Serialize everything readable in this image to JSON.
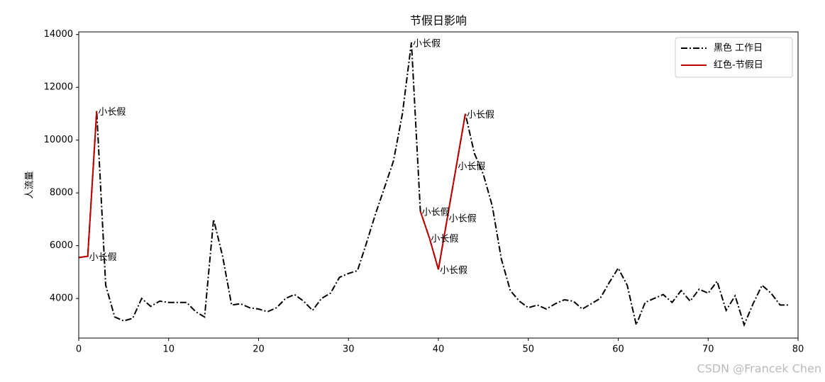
{
  "chart_data": {
    "type": "line",
    "title": "节假日影响",
    "ylabel": "人流量",
    "x": [
      0,
      1,
      2,
      3,
      4,
      5,
      6,
      7,
      8,
      9,
      10,
      11,
      12,
      13,
      14,
      15,
      16,
      17,
      18,
      19,
      20,
      21,
      22,
      23,
      24,
      25,
      26,
      27,
      28,
      29,
      30,
      31,
      32,
      33,
      34,
      35,
      36,
      37,
      38,
      39,
      40,
      41,
      42,
      43,
      44,
      45,
      46,
      47,
      48,
      49,
      50,
      51,
      52,
      53,
      54,
      55,
      56,
      57,
      58,
      59,
      60,
      61,
      62,
      63,
      64,
      65,
      66,
      67,
      68,
      69,
      70,
      71,
      72,
      73,
      74,
      75,
      76,
      77,
      78,
      79
    ],
    "series": [
      {
        "name": "黑色 工作日",
        "color": "#000000",
        "style": "dashdot",
        "values": [
          5550,
          5600,
          11100,
          4500,
          3300,
          3150,
          3250,
          4000,
          3700,
          3900,
          3850,
          3850,
          3850,
          3500,
          3300,
          7000,
          5600,
          3750,
          3800,
          3650,
          3600,
          3500,
          3650,
          4000,
          4150,
          3900,
          3550,
          4000,
          4200,
          4800,
          4950,
          5050,
          6100,
          7200,
          8200,
          9200,
          11000,
          13700,
          7300,
          6300,
          5100,
          7067,
          9033,
          11000,
          9500,
          8700,
          7500,
          5500,
          4300,
          3900,
          3650,
          3750,
          3600,
          3800,
          3950,
          3900,
          3600,
          3800,
          4000,
          4600,
          5150,
          4500,
          3000,
          3850,
          4000,
          4150,
          3850,
          4300,
          3900,
          4350,
          4200,
          4650,
          3550,
          4100,
          3000,
          3800,
          4500,
          4200,
          3750,
          3750
        ]
      },
      {
        "name": "红色-节假日",
        "color": "#c00000",
        "style": "solid",
        "values": [
          5550,
          5600,
          11100,
          null,
          null,
          null,
          null,
          null,
          null,
          null,
          null,
          null,
          null,
          null,
          null,
          null,
          null,
          null,
          null,
          null,
          null,
          null,
          null,
          null,
          null,
          null,
          null,
          null,
          null,
          null,
          null,
          null,
          null,
          null,
          null,
          null,
          null,
          null,
          7300,
          6300,
          5100,
          7067,
          9033,
          11000,
          null,
          null,
          null,
          null,
          null,
          null,
          null,
          null,
          null,
          null,
          null,
          null,
          null,
          null,
          null,
          null,
          null,
          null,
          null,
          null,
          null,
          null,
          null,
          null,
          null,
          null,
          null,
          null,
          null,
          null,
          null,
          null,
          null,
          null,
          null,
          null
        ]
      }
    ],
    "annotations": [
      {
        "text": "小长假",
        "x": 1,
        "y": 5600
      },
      {
        "text": "小长假",
        "x": 2,
        "y": 11100
      },
      {
        "text": "小长假",
        "x": 37,
        "y": 13700
      },
      {
        "text": "小长假",
        "x": 38,
        "y": 7300
      },
      {
        "text": "小长假",
        "x": 39,
        "y": 6300
      },
      {
        "text": "小长假",
        "x": 40,
        "y": 5100
      },
      {
        "text": "小长假",
        "x": 41,
        "y": 7067
      },
      {
        "text": "小长假",
        "x": 42,
        "y": 9033
      },
      {
        "text": "小长假",
        "x": 43,
        "y": 11000
      }
    ],
    "xlim": [
      0,
      80
    ],
    "xticks": [
      0,
      10,
      20,
      30,
      40,
      50,
      60,
      70,
      80
    ],
    "ylim": [
      2500,
      14100
    ],
    "yticks": [
      4000,
      6000,
      8000,
      10000,
      12000,
      14000
    ],
    "legend": "upper right",
    "grid": false,
    "watermark": "CSDN @Francek Chen"
  }
}
